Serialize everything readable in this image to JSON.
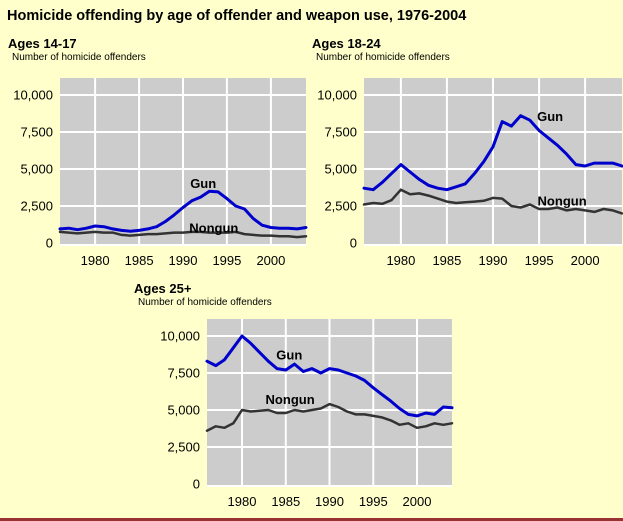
{
  "page": {
    "title": "Homicide offending by age of offender and weapon use, 1976-2004",
    "background_color": "#FFFFCC",
    "bottom_rule_color": "#993333"
  },
  "colors": {
    "plot_background": "#CCCCCC",
    "gridline": "#FFFFFF",
    "gun_line": "#0000CC",
    "nongun_line": "#333333",
    "text": "#000000"
  },
  "chart_data": [
    {
      "type": "line",
      "title": "Ages 14-17",
      "subtitle": "Number of homicide offenders",
      "xlim": [
        1976,
        2004
      ],
      "ylim": [
        0,
        10000
      ],
      "grid": true,
      "legend_position": "inline-labels",
      "xticks": [
        1980,
        1985,
        1990,
        1995,
        2000
      ],
      "xtick_labels": [
        "1980",
        "1985",
        "1990",
        "1995",
        "2000"
      ],
      "yticks": [
        0,
        2500,
        5000,
        7500,
        10000
      ],
      "ytick_labels": [
        "0",
        "2,500",
        "5,000",
        "7,500",
        "10,000"
      ],
      "x": [
        1976,
        1977,
        1978,
        1979,
        1980,
        1981,
        1982,
        1983,
        1984,
        1985,
        1986,
        1987,
        1988,
        1989,
        1990,
        1991,
        1992,
        1993,
        1994,
        1995,
        1996,
        1997,
        1998,
        1999,
        2000,
        2001,
        2002,
        2003,
        2004
      ],
      "series": [
        {
          "name": "Gun",
          "color": "#0000CC",
          "values": [
            950,
            1000,
            900,
            1000,
            1150,
            1100,
            950,
            850,
            800,
            850,
            950,
            1100,
            1450,
            1900,
            2400,
            2850,
            3100,
            3500,
            3450,
            3000,
            2500,
            2300,
            1650,
            1200,
            1050,
            1000,
            1000,
            950,
            1050
          ],
          "label_at": {
            "year": 1992.3,
            "value": 3700
          }
        },
        {
          "name": "Nongun",
          "color": "#333333",
          "values": [
            750,
            700,
            650,
            700,
            750,
            700,
            700,
            550,
            500,
            550,
            600,
            600,
            650,
            700,
            700,
            750,
            750,
            700,
            700,
            700,
            750,
            600,
            550,
            500,
            500,
            450,
            450,
            400,
            450
          ],
          "label_at": {
            "year": 1993.5,
            "value": 700
          }
        }
      ]
    },
    {
      "type": "line",
      "title": "Ages 18-24",
      "subtitle": "Number of homicide offenders",
      "xlim": [
        1976,
        2004
      ],
      "ylim": [
        0,
        10000
      ],
      "grid": true,
      "legend_position": "inline-labels",
      "xticks": [
        1980,
        1985,
        1990,
        1995,
        2000
      ],
      "xtick_labels": [
        "1980",
        "1985",
        "1990",
        "1995",
        "2000"
      ],
      "yticks": [
        0,
        2500,
        5000,
        7500,
        10000
      ],
      "ytick_labels": [
        "0",
        "2,500",
        "5,000",
        "7,500",
        "10,000"
      ],
      "x": [
        1976,
        1977,
        1978,
        1979,
        1980,
        1981,
        1982,
        1983,
        1984,
        1985,
        1986,
        1987,
        1988,
        1989,
        1990,
        1991,
        1992,
        1993,
        1994,
        1995,
        1996,
        1997,
        1998,
        1999,
        2000,
        2001,
        2002,
        2003,
        2004
      ],
      "series": [
        {
          "name": "Gun",
          "color": "#0000CC",
          "values": [
            3700,
            3600,
            4100,
            4700,
            5300,
            4800,
            4300,
            3900,
            3700,
            3600,
            3800,
            4000,
            4700,
            5500,
            6500,
            8200,
            7900,
            8600,
            8300,
            7600,
            7100,
            6600,
            6000,
            5300,
            5200,
            5400,
            5400,
            5400,
            5200
          ],
          "label_at": {
            "year": 1996.2,
            "value": 8250
          }
        },
        {
          "name": "Nongun",
          "color": "#333333",
          "values": [
            2600,
            2700,
            2650,
            2900,
            3600,
            3300,
            3350,
            3200,
            3000,
            2800,
            2700,
            2750,
            2800,
            2850,
            3050,
            3000,
            2500,
            2400,
            2600,
            2300,
            2300,
            2400,
            2200,
            2300,
            2200,
            2100,
            2300,
            2200,
            2000
          ],
          "label_at": {
            "year": 1997.5,
            "value": 2550
          }
        }
      ]
    },
    {
      "type": "line",
      "title": "Ages 25+",
      "subtitle": "Number of homicide offenders",
      "xlim": [
        1976,
        2004
      ],
      "ylim": [
        0,
        10000
      ],
      "grid": true,
      "legend_position": "inline-labels",
      "xticks": [
        1980,
        1985,
        1990,
        1995,
        2000
      ],
      "xtick_labels": [
        "1980",
        "1985",
        "1990",
        "1995",
        "2000"
      ],
      "yticks": [
        0,
        2500,
        5000,
        7500,
        10000
      ],
      "ytick_labels": [
        "0",
        "2,500",
        "5,000",
        "7,500",
        "10,000"
      ],
      "x": [
        1976,
        1977,
        1978,
        1979,
        1980,
        1981,
        1982,
        1983,
        1984,
        1985,
        1986,
        1987,
        1988,
        1989,
        1990,
        1991,
        1992,
        1993,
        1994,
        1995,
        1996,
        1997,
        1998,
        1999,
        2000,
        2001,
        2002,
        2003,
        2004
      ],
      "series": [
        {
          "name": "Gun",
          "color": "#0000CC",
          "values": [
            8300,
            8000,
            8400,
            9200,
            10000,
            9500,
            8900,
            8300,
            7800,
            7700,
            8100,
            7600,
            7800,
            7500,
            7800,
            7700,
            7500,
            7300,
            7000,
            6500,
            6050,
            5600,
            5100,
            4700,
            4600,
            4800,
            4700,
            5200,
            5150
          ],
          "label_at": {
            "year": 1985.4,
            "value": 8400
          }
        },
        {
          "name": "Nongun",
          "color": "#333333",
          "values": [
            3600,
            3900,
            3800,
            4100,
            5000,
            4900,
            4950,
            5000,
            4800,
            4800,
            5000,
            4900,
            5000,
            5100,
            5400,
            5200,
            4900,
            4700,
            4700,
            4600,
            4500,
            4300,
            4000,
            4100,
            3800,
            3900,
            4100,
            4000,
            4100
          ],
          "label_at": {
            "year": 1985.5,
            "value": 5400
          }
        }
      ]
    }
  ]
}
